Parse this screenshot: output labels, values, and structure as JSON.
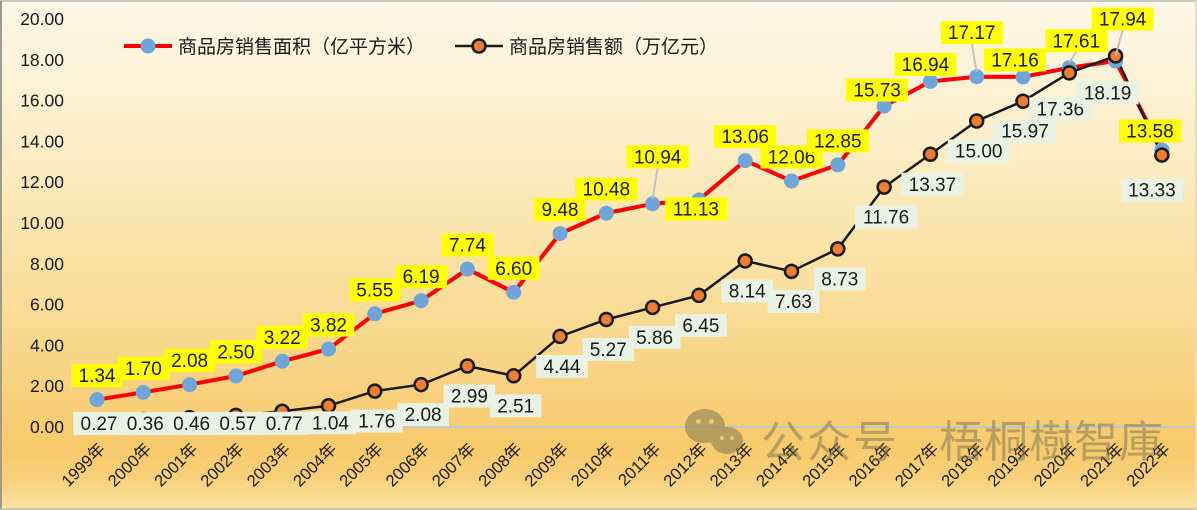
{
  "chart_data": {
    "type": "line",
    "title": "",
    "xlabel": "",
    "ylabel": "",
    "ylim": [
      0,
      20
    ],
    "y_tick_step": 2,
    "y_tick_labels": [
      "0.00",
      "2.00",
      "4.00",
      "6.00",
      "8.00",
      "10.00",
      "12.00",
      "14.00",
      "16.00",
      "18.00",
      "20.00"
    ],
    "grid": false,
    "legend_position": "top-center",
    "categories": [
      "1999年",
      "2000年",
      "2001年",
      "2002年",
      "2003年",
      "2004年",
      "2005年",
      "2006年",
      "2007年",
      "2008年",
      "2009年",
      "2010年",
      "2011年",
      "2012年",
      "2013年",
      "2014年",
      "2015年",
      "2016年",
      "2017年",
      "2018年",
      "2019年",
      "2020年",
      "2021年",
      "2022年"
    ],
    "series": [
      {
        "name": "商品房销售面积（亿平方米）",
        "values": [
          1.34,
          1.7,
          2.08,
          2.5,
          3.22,
          3.82,
          5.55,
          6.19,
          7.74,
          6.6,
          9.48,
          10.48,
          10.94,
          11.13,
          13.06,
          12.06,
          12.85,
          15.73,
          16.94,
          17.17,
          17.16,
          17.61,
          17.94,
          13.58
        ],
        "labels": [
          "1.34",
          "1.70",
          "2.08",
          "2.50",
          "3.22",
          "3.82",
          "5.55",
          "6.19",
          "7.74",
          "6.60",
          "9.48",
          "10.48",
          "10.94",
          "11.13",
          "13.06",
          "12.06",
          "12.85",
          "15.73",
          "16.94",
          "17.17",
          "17.16",
          "17.61",
          "17.94",
          "13.58"
        ],
        "line_color": "#FF0000",
        "marker_color": "#6EA6DC",
        "marker_stroke": "none",
        "label_bg": "#FFFF00"
      },
      {
        "name": "商品房销售额（万亿元）",
        "values": [
          0.27,
          0.36,
          0.46,
          0.57,
          0.77,
          1.04,
          1.76,
          2.08,
          2.99,
          2.51,
          4.44,
          5.27,
          5.86,
          6.45,
          8.14,
          7.63,
          8.73,
          11.76,
          13.37,
          15.0,
          15.97,
          17.36,
          18.19,
          13.33
        ],
        "labels": [
          "0.27",
          "0.36",
          "0.46",
          "0.57",
          "0.77",
          "1.04",
          "1.76",
          "2.08",
          "2.99",
          "2.51",
          "4.44",
          "5.27",
          "5.86",
          "6.45",
          "8.14",
          "7.63",
          "8.73",
          "11.76",
          "13.37",
          "15.00",
          "15.97",
          "17.36",
          "18.19",
          "13.33"
        ],
        "line_color": "#1A1A1A",
        "marker_color": "#ED7D31",
        "marker_stroke": "#1A1A1A",
        "label_bg": "#E9F2E4"
      }
    ],
    "axis_line_color": "#C6C6C6",
    "leader_line_color": "#BFBFBF",
    "text_color": "#1A1A1A"
  },
  "watermark": {
    "icon": "wechat-icon",
    "text1": "公众号",
    "text2": "梧桐樹智庫"
  }
}
